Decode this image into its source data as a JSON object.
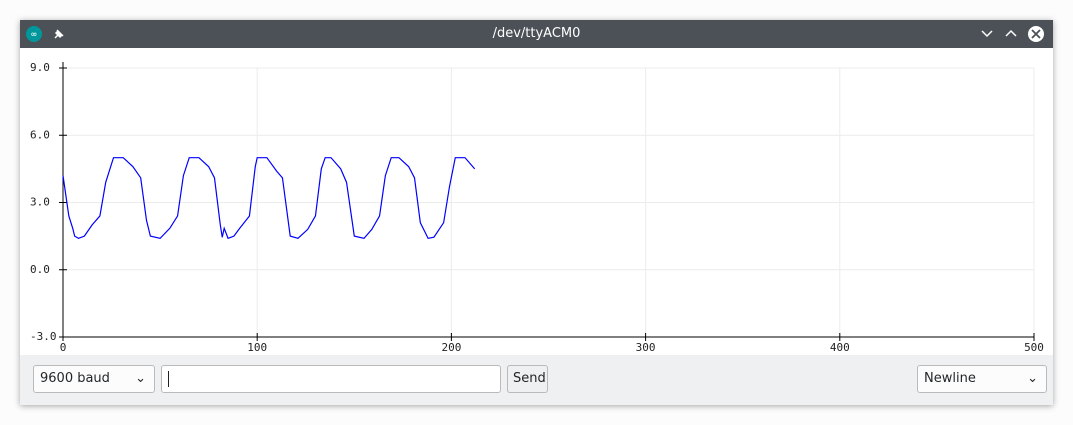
{
  "window": {
    "title": "/dev/ttyACM0"
  },
  "controls": {
    "baud": "9600 baud",
    "send": "Send",
    "line_ending": "Newline"
  },
  "chart_data": {
    "type": "line",
    "x": [
      0,
      3,
      5,
      6,
      8,
      11,
      15,
      19,
      22,
      26,
      31,
      36,
      40,
      43,
      45,
      50,
      55,
      59,
      62,
      65,
      70,
      75,
      78,
      81,
      82,
      83,
      85,
      88,
      91,
      96,
      99,
      100,
      105,
      110,
      113,
      117,
      121,
      126,
      130,
      133,
      135,
      138,
      143,
      146,
      150,
      155,
      159,
      163,
      166,
      169,
      173,
      178,
      181,
      184,
      188,
      191,
      196,
      199,
      202,
      207,
      212
    ],
    "series": [
      {
        "color": "#0000ff",
        "values": [
          4.2,
          2.4,
          1.85,
          1.5,
          1.4,
          1.5,
          2.0,
          2.4,
          3.9,
          5.0,
          5.0,
          4.6,
          4.1,
          2.2,
          1.5,
          1.4,
          1.85,
          2.4,
          4.2,
          5.0,
          5.0,
          4.6,
          4.1,
          2.0,
          1.45,
          1.85,
          1.4,
          1.5,
          1.85,
          2.4,
          4.6,
          5.0,
          5.0,
          4.4,
          4.1,
          1.5,
          1.4,
          1.8,
          2.4,
          4.5,
          5.0,
          5.0,
          4.5,
          3.9,
          1.5,
          1.4,
          1.8,
          2.4,
          4.2,
          5.0,
          5.0,
          4.6,
          4.1,
          2.1,
          1.4,
          1.45,
          2.1,
          3.7,
          5.0,
          5.0,
          4.5
        ]
      }
    ],
    "xlim": [
      0,
      500
    ],
    "xticks": [
      0,
      100,
      200,
      300,
      400,
      500
    ],
    "ylim": [
      -3,
      9
    ],
    "yticks": [
      {
        "value": -3,
        "label": "-3.0"
      },
      {
        "value": 0,
        "label": "0.0"
      },
      {
        "value": 3,
        "label": "3.0"
      },
      {
        "value": 6,
        "label": "6.0"
      },
      {
        "value": 9,
        "label": "9.0"
      }
    ],
    "grid": true
  }
}
